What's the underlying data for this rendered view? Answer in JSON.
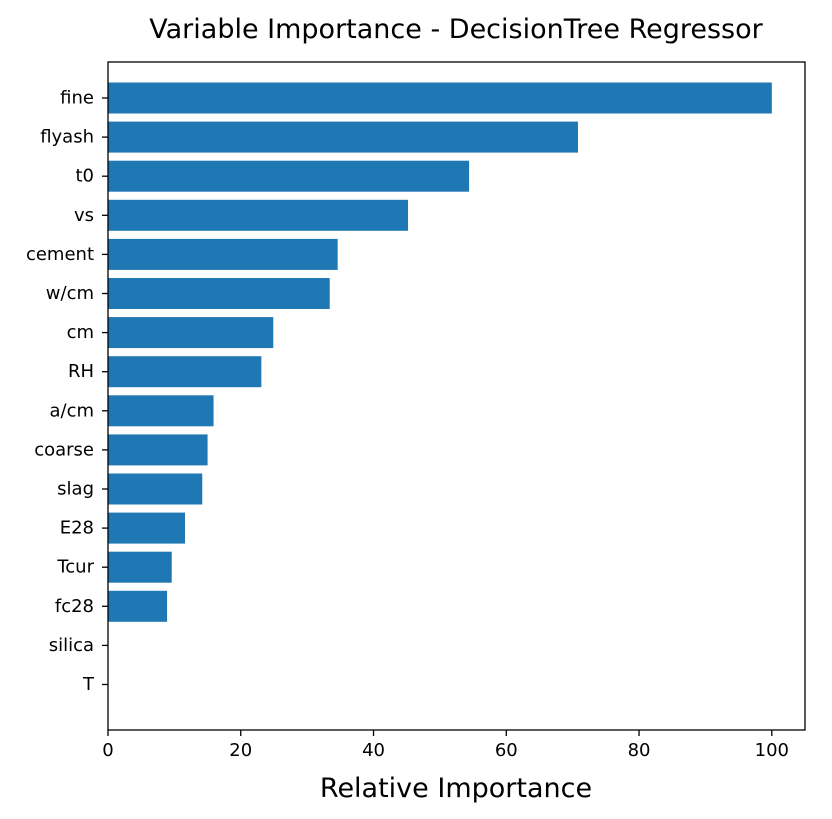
{
  "chart_data": {
    "type": "bar",
    "orientation": "horizontal",
    "title": "Variable Importance - DecisionTree Regressor",
    "xlabel": "Relative Importance",
    "ylabel": "",
    "xlim": [
      0,
      105
    ],
    "xticks": [
      "0",
      "20",
      "40",
      "60",
      "80",
      "100"
    ],
    "grid": false,
    "bar_color": "#1f77b4",
    "categories": [
      "fine",
      "flyash",
      "t0",
      "vs",
      "cement",
      "w/cm",
      "cm",
      "RH",
      "a/cm",
      "coarse",
      "slag",
      "E28",
      "Tcur",
      "fc28",
      "silica",
      "T"
    ],
    "values": [
      100,
      70.8,
      54.4,
      45.2,
      34.6,
      33.4,
      24.9,
      23.1,
      15.9,
      15.0,
      14.2,
      11.6,
      9.6,
      8.9,
      0,
      0
    ]
  }
}
